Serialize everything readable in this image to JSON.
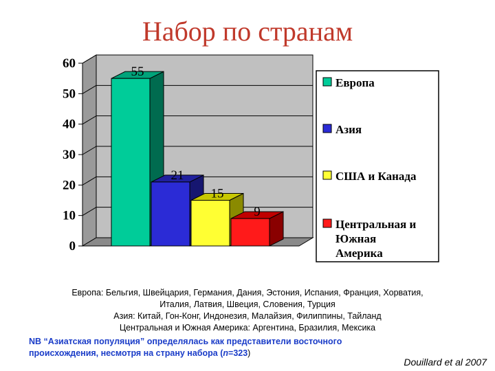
{
  "chart_data": {
    "type": "bar",
    "title": "Набор по  странам",
    "categories": [
      "Европа",
      "Азия",
      "США и Канада",
      "Центральная и Южная Америка"
    ],
    "values": [
      55,
      21,
      15,
      9
    ],
    "ylim": [
      0,
      60
    ],
    "yticks": [
      "0",
      "10",
      "20",
      "30",
      "40",
      "50",
      "60"
    ],
    "grid": true,
    "legend_position": "right",
    "colors": [
      "#00cc99",
      "#2b2bd6",
      "#ffff33",
      "#ff1a1a"
    ],
    "side_colors": [
      "#006b4f",
      "#161670",
      "#8a8a00",
      "#8a0000"
    ],
    "top_colors": [
      "#00a37a",
      "#20209e",
      "#c8c800",
      "#c00000"
    ],
    "legend": [
      {
        "lines": [
          "Европа"
        ]
      },
      {
        "lines": [
          "Азия"
        ]
      },
      {
        "lines": [
          "США и Канада"
        ]
      },
      {
        "lines": [
          "Центральная и",
          "Южная",
          "Америка"
        ]
      }
    ]
  },
  "notes": [
    "Европа: Бельгия, Швейцария, Германия, Дания, Эстония, Испания, Франция, Хорватия,",
    "Италия, Латвия, Швеция, Словения, Турция",
    "Азия: Китай, Гон-Конг, Индонезия, Малайзия, Филиппины, Тайланд",
    "Центральная и Южная Америка: Аргентина, Бразилия, Мексика"
  ],
  "nb": {
    "label": "NB",
    "text1": "“Азиатская популяция” определялась как  представители восточного",
    "text2": "происхождения, несмотря на страну набора (",
    "n_symbol": "n",
    "n_value": "=323",
    "close": ")"
  },
  "citation": "Douillard et al 2007"
}
